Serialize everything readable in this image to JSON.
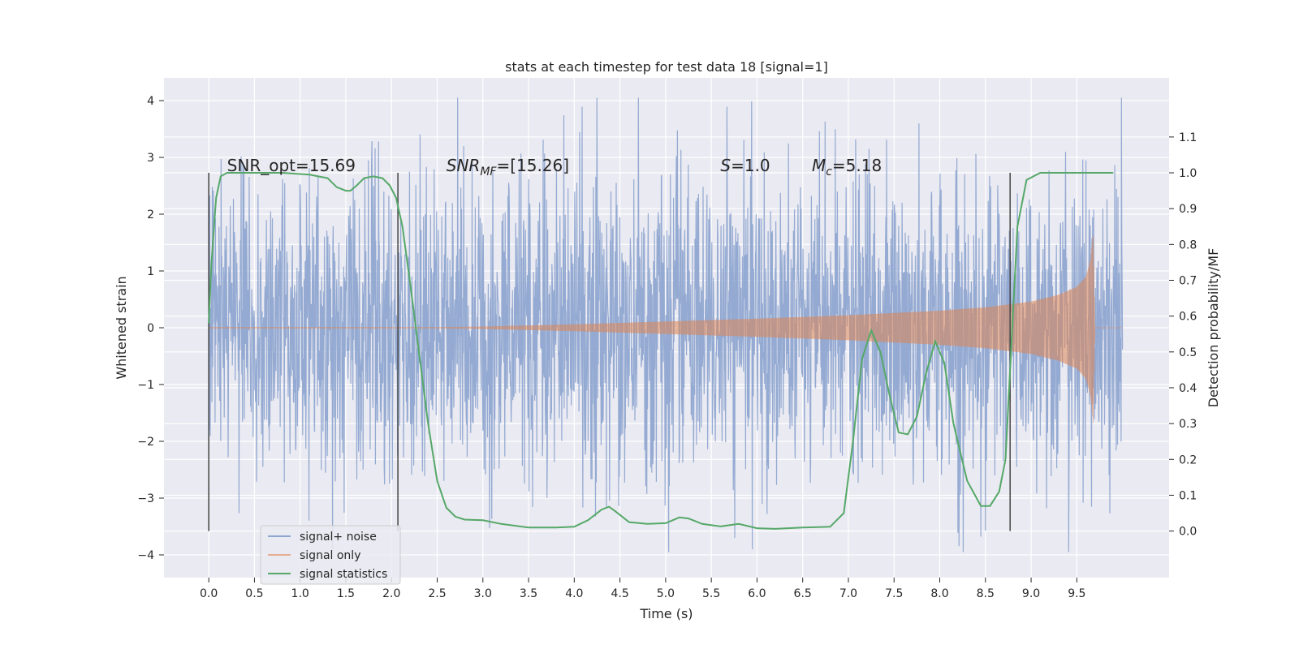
{
  "chart_data": {
    "type": "line",
    "title": "stats at each timestep for test data 18 [signal=1]",
    "xlabel": "Time (s)",
    "ylabel_left": "Whitened strain",
    "ylabel_right": "Detection probability/MF",
    "xlim": [
      -0.49,
      10.51
    ],
    "ylim_left": [
      -4.4,
      4.4
    ],
    "ylim_right": [
      -0.13,
      1.265
    ],
    "x_ticks": [
      "0.0",
      "0.5",
      "1.0",
      "1.5",
      "2.0",
      "2.5",
      "3.0",
      "3.5",
      "4.0",
      "4.5",
      "5.0",
      "5.5",
      "6.0",
      "6.5",
      "7.0",
      "7.5",
      "8.0",
      "8.5",
      "9.0",
      "9.5"
    ],
    "x_tick_values": [
      0,
      0.5,
      1,
      1.5,
      2,
      2.5,
      3,
      3.5,
      4,
      4.5,
      5,
      5.5,
      6,
      6.5,
      7,
      7.5,
      8,
      8.5,
      9,
      9.5
    ],
    "y_left_ticks": [
      "4",
      "3",
      "2",
      "1",
      "0",
      "−1",
      "−2",
      "−3",
      "−4"
    ],
    "y_left_tick_values": [
      4,
      3,
      2,
      1,
      0,
      -1,
      -2,
      -3,
      -4
    ],
    "y_right_ticks": [
      "1.1",
      "1.0",
      "0.9",
      "0.8",
      "0.7",
      "0.6",
      "0.5",
      "0.4",
      "0.3",
      "0.2",
      "0.1",
      "0.0"
    ],
    "y_right_tick_values": [
      1.1,
      1.0,
      0.9,
      0.8,
      0.7,
      0.6,
      0.5,
      0.4,
      0.3,
      0.2,
      0.1,
      0.0
    ],
    "grid": true,
    "legend_position": "lower-left",
    "annotations": [
      {
        "name": "snr-opt",
        "text": "SNR_opt=15.69",
        "x": 0.2
      },
      {
        "name": "snr-mf",
        "text": "SNR",
        "sub": "MF",
        "suffix": "=[15.26]",
        "italic": true,
        "x": 2.6
      },
      {
        "name": "spin",
        "text": "S",
        "suffix": "=1.0",
        "italic": true,
        "x": 5.6
      },
      {
        "name": "chirp-mass",
        "text": "M",
        "sub": "c",
        "suffix": "=5.18",
        "italic": true,
        "x": 6.6
      }
    ],
    "vertical_markers": [
      0.0,
      2.07,
      8.77
    ],
    "series": [
      {
        "name": "signal+ noise",
        "axis": "left",
        "color": "#8fa6d0",
        "noise_band_1sigma": 1.3,
        "min": -3.95,
        "max": 4.05,
        "x_range": [
          0.0,
          10.0
        ]
      },
      {
        "name": "signal only",
        "axis": "left",
        "color": "#dd8452",
        "envelope": {
          "x": [
            0.0,
            2.5,
            3.0,
            4.0,
            5.0,
            6.0,
            7.0,
            8.0,
            8.5,
            9.0,
            9.3,
            9.5,
            9.6,
            9.65,
            9.68,
            9.7,
            10.0
          ],
          "amp": [
            0.01,
            0.01,
            0.02,
            0.06,
            0.11,
            0.16,
            0.22,
            0.3,
            0.36,
            0.46,
            0.58,
            0.72,
            0.9,
            1.2,
            1.7,
            0.0,
            0.0
          ]
        }
      },
      {
        "name": "signal statistics",
        "axis": "right",
        "color": "#55a868",
        "x": [
          0.0,
          0.03,
          0.08,
          0.13,
          0.2,
          0.3,
          0.5,
          0.8,
          1.1,
          1.3,
          1.4,
          1.5,
          1.55,
          1.62,
          1.7,
          1.8,
          1.9,
          1.98,
          2.05,
          2.12,
          2.2,
          2.3,
          2.4,
          2.5,
          2.6,
          2.7,
          2.8,
          3.0,
          3.2,
          3.5,
          3.8,
          4.0,
          4.15,
          4.3,
          4.38,
          4.45,
          4.6,
          4.8,
          5.0,
          5.15,
          5.25,
          5.4,
          5.6,
          5.8,
          6.0,
          6.2,
          6.5,
          6.8,
          6.95,
          7.05,
          7.15,
          7.25,
          7.35,
          7.45,
          7.55,
          7.65,
          7.75,
          7.85,
          7.95,
          8.05,
          8.15,
          8.3,
          8.45,
          8.55,
          8.65,
          8.72,
          8.78,
          8.85,
          8.95,
          9.1,
          9.3,
          9.6,
          9.9
        ],
        "values": [
          0.58,
          0.75,
          0.93,
          0.99,
          1.0,
          1.0,
          1.0,
          1.0,
          0.995,
          0.985,
          0.96,
          0.95,
          0.95,
          0.965,
          0.985,
          0.99,
          0.985,
          0.965,
          0.93,
          0.85,
          0.7,
          0.5,
          0.3,
          0.14,
          0.065,
          0.04,
          0.032,
          0.03,
          0.02,
          0.01,
          0.01,
          0.012,
          0.03,
          0.06,
          0.068,
          0.055,
          0.025,
          0.02,
          0.022,
          0.038,
          0.035,
          0.02,
          0.013,
          0.02,
          0.008,
          0.006,
          0.01,
          0.012,
          0.05,
          0.25,
          0.48,
          0.56,
          0.5,
          0.38,
          0.275,
          0.27,
          0.32,
          0.44,
          0.53,
          0.47,
          0.3,
          0.14,
          0.07,
          0.07,
          0.11,
          0.2,
          0.5,
          0.85,
          0.98,
          1.0,
          1.0,
          1.0,
          1.0
        ]
      }
    ]
  }
}
